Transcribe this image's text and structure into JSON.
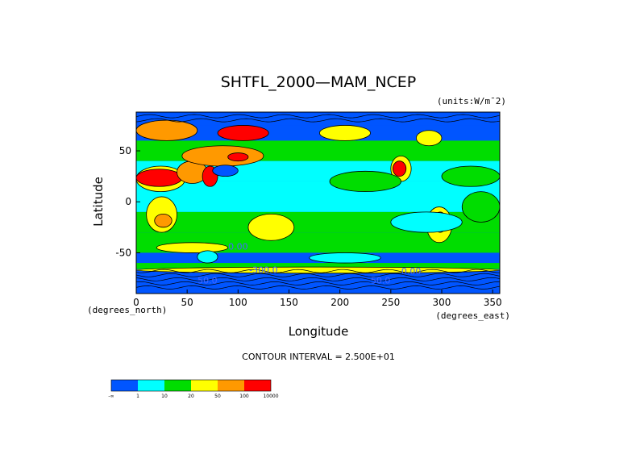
{
  "chart_data": {
    "type": "heatmap",
    "title": "SHTFL_2000—MAM_NCEP",
    "units_label": "(units:W/m¯2)",
    "xlabel": "Longitude",
    "ylabel": "Latitude",
    "x_unit_note": "(degrees_east)",
    "y_unit_note": "(degrees_north)",
    "xlim": [
      0,
      357
    ],
    "ylim": [
      -90,
      88
    ],
    "x_ticks": [
      0,
      50,
      100,
      150,
      200,
      250,
      300,
      350
    ],
    "y_ticks": [
      -50,
      0,
      50
    ],
    "contour_interval_text": "CONTOUR INTERVAL = 2.500E+01",
    "contour_labels": [
      {
        "text": "0.00",
        "lon": 100,
        "lat": -47
      },
      {
        "text": "-300.0",
        "lon": 125,
        "lat": -70
      },
      {
        "text": "50.0",
        "lon": 70,
        "lat": -80
      },
      {
        "text": "50.0",
        "lon": 240,
        "lat": -80
      },
      {
        "text": "0.00",
        "lon": 270,
        "lat": -71
      }
    ],
    "colorbar": {
      "colors": [
        "#0055ff",
        "#00ffff",
        "#00dd00",
        "#ffff00",
        "#ff9900",
        "#ff0000"
      ],
      "tick_labels": [
        "-∞",
        "1",
        "10",
        "20",
        "50",
        "100",
        "10000"
      ]
    },
    "bands": [
      {
        "lat": [
          75,
          88
        ],
        "color": "#0055ff"
      },
      {
        "lat": [
          60,
          75
        ],
        "color": "#0055ff"
      },
      {
        "lat": [
          40,
          60
        ],
        "color": "#00dd00"
      },
      {
        "lat": [
          20,
          40
        ],
        "color": "#00ffff"
      },
      {
        "lat": [
          -10,
          20
        ],
        "color": "#00ffff"
      },
      {
        "lat": [
          -30,
          -10
        ],
        "color": "#00dd00"
      },
      {
        "lat": [
          -50,
          -30
        ],
        "color": "#00dd00"
      },
      {
        "lat": [
          -60,
          -50
        ],
        "color": "#0055ff"
      },
      {
        "lat": [
          -66,
          -60
        ],
        "color": "#00dd00"
      },
      {
        "lat": [
          -90,
          -66
        ],
        "color": "#0055ff"
      }
    ],
    "regions": [
      {
        "lon": [
          0,
          48
        ],
        "lat": [
          10,
          35
        ],
        "color": "#ffff00"
      },
      {
        "lon": [
          0,
          45
        ],
        "lat": [
          15,
          32
        ],
        "color": "#ff0000"
      },
      {
        "lon": [
          40,
          70
        ],
        "lat": [
          18,
          40
        ],
        "color": "#ff9900"
      },
      {
        "lon": [
          65,
          80
        ],
        "lat": [
          15,
          35
        ],
        "color": "#ff0000"
      },
      {
        "lon": [
          45,
          125
        ],
        "lat": [
          35,
          55
        ],
        "color": "#ff9900"
      },
      {
        "lon": [
          90,
          110
        ],
        "lat": [
          40,
          48
        ],
        "color": "#ff0000"
      },
      {
        "lon": [
          75,
          100
        ],
        "lat": [
          25,
          36
        ],
        "color": "#0055ff"
      },
      {
        "lon": [
          10,
          40
        ],
        "lat": [
          -30,
          5
        ],
        "color": "#ffff00"
      },
      {
        "lon": [
          18,
          35
        ],
        "lat": [
          -25,
          -12
        ],
        "color": "#ff9900"
      },
      {
        "lon": [
          115,
          150
        ],
        "lat": [
          -35,
          -15
        ],
        "color": "#ff9900"
      },
      {
        "lon": [
          110,
          155
        ],
        "lat": [
          -38,
          -12
        ],
        "color": "#ffff00"
      },
      {
        "lon": [
          20,
          90
        ],
        "lat": [
          -50,
          -40
        ],
        "color": "#ffff00"
      },
      {
        "lon": [
          250,
          270
        ],
        "lat": [
          20,
          45
        ],
        "color": "#ffff00"
      },
      {
        "lon": [
          252,
          265
        ],
        "lat": [
          25,
          40
        ],
        "color": "#ff0000"
      },
      {
        "lon": [
          285,
          310
        ],
        "lat": [
          -40,
          -5
        ],
        "color": "#ffff00"
      },
      {
        "lon": [
          292,
          305
        ],
        "lat": [
          -30,
          -10
        ],
        "color": "#ff9900"
      },
      {
        "lon": [
          0,
          60
        ],
        "lat": [
          60,
          80
        ],
        "color": "#ff9900"
      },
      {
        "lon": [
          80,
          130
        ],
        "lat": [
          60,
          75
        ],
        "color": "#ff0000"
      },
      {
        "lon": [
          180,
          230
        ],
        "lat": [
          60,
          75
        ],
        "color": "#ffff00"
      },
      {
        "lon": [
          275,
          300
        ],
        "lat": [
          55,
          70
        ],
        "color": "#ffff00"
      },
      {
        "lon": [
          170,
          240
        ],
        "lat": [
          -60,
          -50
        ],
        "color": "#00ffff"
      },
      {
        "lon": [
          250,
          320
        ],
        "lat": [
          -30,
          -10
        ],
        "color": "#00ffff"
      },
      {
        "lon": [
          190,
          260
        ],
        "lat": [
          10,
          30
        ],
        "color": "#00dd00"
      },
      {
        "lon": [
          300,
          357
        ],
        "lat": [
          15,
          35
        ],
        "color": "#00dd00"
      },
      {
        "lon": [
          320,
          357
        ],
        "lat": [
          -20,
          10
        ],
        "color": "#00dd00"
      },
      {
        "lon": [
          60,
          80
        ],
        "lat": [
          -60,
          -48
        ],
        "color": "#00ffff"
      },
      {
        "lon": [
          0,
          357
        ],
        "lat": [
          -70,
          -64
        ],
        "color": "#ffff00"
      }
    ]
  }
}
